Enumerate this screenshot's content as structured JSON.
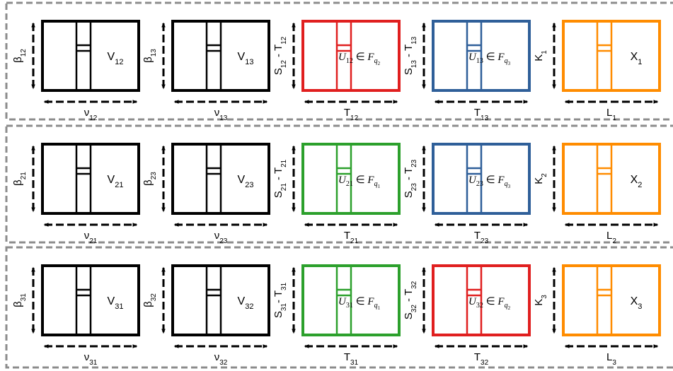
{
  "colors": {
    "black": "#000000",
    "red": "#e01f1f",
    "green": "#2ca02c",
    "blue": "#2f5f99",
    "orange": "#ff8c00",
    "group_border": "#8c8c8c"
  },
  "groups": [
    {
      "blocks": [
        {
          "color": "black",
          "inner": {
            "main": "V",
            "sub": "12"
          },
          "side": {
            "main": "β",
            "sub": "12"
          },
          "bottom": {
            "main": "ν",
            "sub": "12"
          }
        },
        {
          "color": "black",
          "inner": {
            "main": "V",
            "sub": "13"
          },
          "side": {
            "main": "β",
            "sub": "13"
          },
          "bottom": {
            "main": "ν",
            "sub": "13"
          }
        },
        {
          "color": "red",
          "inner_math": {
            "lhs": "U",
            "lhs_sub": "12",
            "rel": "∈",
            "rhs": "F",
            "rhs_sub": "q",
            "rhs_subsub": "2"
          },
          "side": {
            "main": "S",
            "sub": "12",
            "sep": " - ",
            "main2": "T",
            "sub2": "12"
          },
          "bottom": {
            "main": "T",
            "sub": "12"
          }
        },
        {
          "color": "blue",
          "inner_math": {
            "lhs": "U",
            "lhs_sub": "13",
            "rel": "∈",
            "rhs": "F",
            "rhs_sub": "q",
            "rhs_subsub": "3"
          },
          "side": {
            "main": "S",
            "sub": "13",
            "sep": " - ",
            "main2": "T",
            "sub2": "13"
          },
          "bottom": {
            "main": "T",
            "sub": "13"
          }
        },
        {
          "color": "orange",
          "inner": {
            "main": "X",
            "sub": "1"
          },
          "side": {
            "main": "K",
            "sub": "1"
          },
          "bottom": {
            "main": "L",
            "sub": "1"
          }
        }
      ]
    },
    {
      "blocks": [
        {
          "color": "black",
          "inner": {
            "main": "V",
            "sub": "21"
          },
          "side": {
            "main": "β",
            "sub": "21"
          },
          "bottom": {
            "main": "ν",
            "sub": "21"
          }
        },
        {
          "color": "black",
          "inner": {
            "main": "V",
            "sub": "23"
          },
          "side": {
            "main": "β",
            "sub": "23"
          },
          "bottom": {
            "main": "ν",
            "sub": "23"
          }
        },
        {
          "color": "green",
          "inner_math": {
            "lhs": "U",
            "lhs_sub": "21",
            "rel": "∈",
            "rhs": "F",
            "rhs_sub": "q",
            "rhs_subsub": "1"
          },
          "side": {
            "main": "S",
            "sub": "21",
            "sep": " - ",
            "main2": "T",
            "sub2": "21"
          },
          "bottom": {
            "main": "T",
            "sub": "21"
          }
        },
        {
          "color": "blue",
          "inner_math": {
            "lhs": "U",
            "lhs_sub": "23",
            "rel": "∈",
            "rhs": "F",
            "rhs_sub": "q",
            "rhs_subsub": "3"
          },
          "side": {
            "main": "S",
            "sub": "23",
            "sep": " - ",
            "main2": "T",
            "sub2": "23"
          },
          "bottom": {
            "main": "T",
            "sub": "23"
          }
        },
        {
          "color": "orange",
          "inner": {
            "main": "X",
            "sub": "2"
          },
          "side": {
            "main": "K",
            "sub": "2"
          },
          "bottom": {
            "main": "L",
            "sub": "2"
          }
        }
      ]
    },
    {
      "blocks": [
        {
          "color": "black",
          "inner": {
            "main": "V",
            "sub": "31"
          },
          "side": {
            "main": "β",
            "sub": "31"
          },
          "bottom": {
            "main": "ν",
            "sub": "31"
          }
        },
        {
          "color": "black",
          "inner": {
            "main": "V",
            "sub": "32"
          },
          "side": {
            "main": "β",
            "sub": "32"
          },
          "bottom": {
            "main": "ν",
            "sub": "32"
          }
        },
        {
          "color": "green",
          "inner_math": {
            "lhs": "U",
            "lhs_sub": "31",
            "rel": "∈",
            "rhs": "F",
            "rhs_sub": "q",
            "rhs_subsub": "1"
          },
          "side": {
            "main": "S",
            "sub": "31",
            "sep": "- ",
            "main2": "T",
            "sub2": "31"
          },
          "bottom": {
            "main": "T",
            "sub": "31"
          }
        },
        {
          "color": "red",
          "inner_math": {
            "lhs": "U",
            "lhs_sub": "32",
            "rel": "∈",
            "rhs": "F",
            "rhs_sub": "q",
            "rhs_subsub": "2"
          },
          "side": {
            "main": "S",
            "sub": "32",
            "sep": " - ",
            "main2": "T",
            "sub2": "32"
          },
          "bottom": {
            "main": "T",
            "sub": "32"
          }
        },
        {
          "color": "orange",
          "inner": {
            "main": "X",
            "sub": "3"
          },
          "side": {
            "main": "K",
            "sub": "3"
          },
          "bottom": {
            "main": "L",
            "sub": "3"
          }
        }
      ]
    }
  ]
}
